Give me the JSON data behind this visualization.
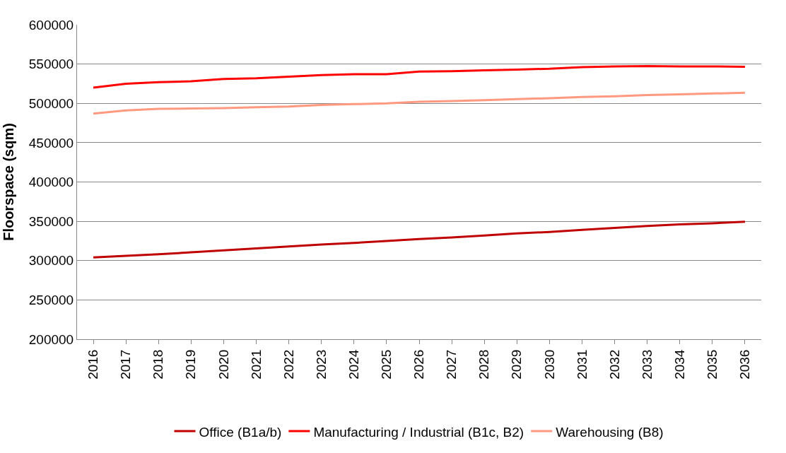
{
  "chart_data": {
    "type": "line",
    "ylabel": "Floorspace (sqm)",
    "categories": [
      "2016",
      "2017",
      "2018",
      "2019",
      "2020",
      "2021",
      "2022",
      "2023",
      "2024",
      "2025",
      "2026",
      "2027",
      "2028",
      "2029",
      "2030",
      "2031",
      "2032",
      "2033",
      "2034",
      "2035",
      "2036"
    ],
    "series": [
      {
        "name": "Office (B1a/b)",
        "color": "#c00000",
        "values": [
          304000,
          306000,
          308000,
          310500,
          313000,
          315500,
          318000,
          320500,
          322500,
          325000,
          327500,
          329500,
          332000,
          334500,
          336500,
          339000,
          341500,
          344000,
          346000,
          347500,
          349500
        ]
      },
      {
        "name": "Manufacturing / Industrial (B1c, B2)",
        "color": "#ff0000",
        "values": [
          520000,
          525000,
          527000,
          528000,
          531000,
          532000,
          534000,
          536000,
          537000,
          537000,
          540500,
          541000,
          542000,
          543000,
          544000,
          546000,
          547000,
          547500,
          547000,
          547000,
          546500
        ]
      },
      {
        "name": "Warehousing (B8)",
        "color": "#ff9980",
        "values": [
          487000,
          491000,
          493000,
          493500,
          494000,
          495000,
          496000,
          498000,
          499000,
          500000,
          502000,
          503000,
          504000,
          505500,
          506500,
          508000,
          509000,
          510500,
          511500,
          512500,
          513500
        ]
      }
    ],
    "ylim": [
      200000,
      600000
    ],
    "yticks": [
      200000,
      250000,
      300000,
      350000,
      400000,
      450000,
      500000,
      550000,
      600000
    ],
    "grid": "y",
    "legend": "bottom",
    "marker": "none",
    "line_style": "solid"
  }
}
